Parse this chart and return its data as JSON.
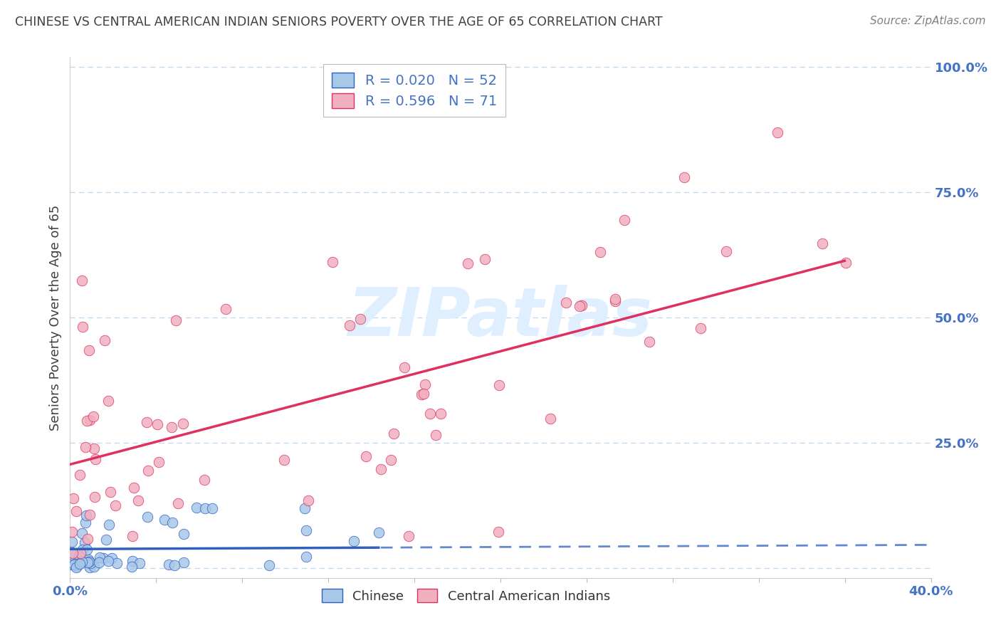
{
  "title": "CHINESE VS CENTRAL AMERICAN INDIAN SENIORS POVERTY OVER THE AGE OF 65 CORRELATION CHART",
  "source": "Source: ZipAtlas.com",
  "ylabel": "Seniors Poverty Over the Age of 65",
  "xlim": [
    0.0,
    0.4
  ],
  "ylim": [
    -0.02,
    1.02
  ],
  "xtick_positions": [
    0.0,
    0.04,
    0.08,
    0.12,
    0.16,
    0.2,
    0.24,
    0.28,
    0.32,
    0.36,
    0.4
  ],
  "xtick_labels": [
    "0.0%",
    "",
    "",
    "",
    "",
    "",
    "",
    "",
    "",
    "",
    "40.0%"
  ],
  "ytick_positions": [
    0.0,
    0.25,
    0.5,
    0.75,
    1.0
  ],
  "ytick_labels": [
    "",
    "25.0%",
    "50.0%",
    "75.0%",
    "100.0%"
  ],
  "chinese_R": 0.02,
  "chinese_N": 52,
  "ca_indian_R": 0.596,
  "ca_indian_N": 71,
  "chinese_dot_color": "#a8c8e8",
  "ca_indian_dot_color": "#f0b0c0",
  "chinese_line_color": "#3060c0",
  "ca_indian_line_color": "#e03060",
  "grid_color": "#c0d8f0",
  "background_color": "#ffffff",
  "tick_label_color": "#4472c4",
  "title_color": "#404040",
  "source_color": "#808080",
  "ylabel_color": "#404040",
  "watermark_color": "#ddeeff",
  "watermark_alpha": 0.9
}
